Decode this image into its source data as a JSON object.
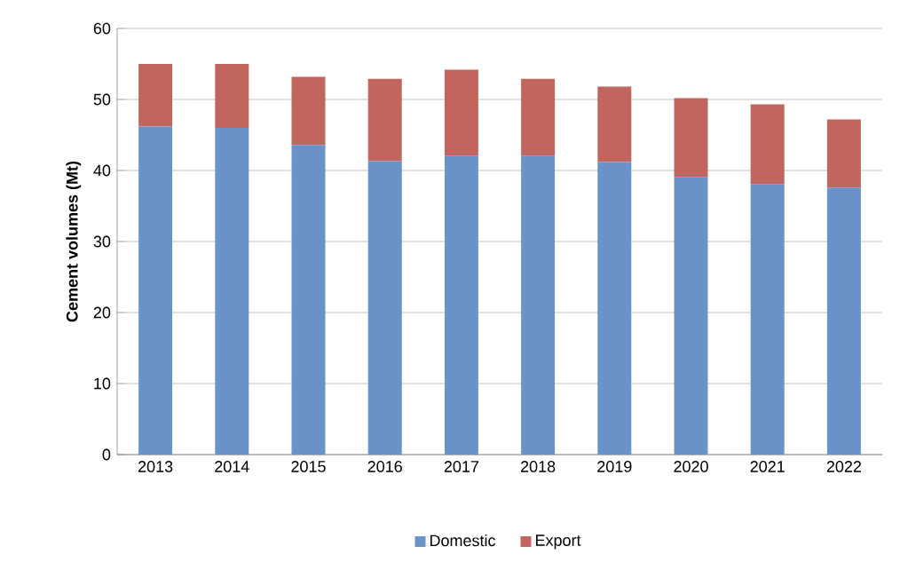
{
  "chart_data": {
    "type": "bar",
    "stacked": true,
    "ylabel": "Cement volumes (Mt)",
    "categories": [
      "2013",
      "2014",
      "2015",
      "2016",
      "2017",
      "2018",
      "2019",
      "2020",
      "2021",
      "2022"
    ],
    "series": [
      {
        "name": "Domestic",
        "color": "#6a94c8",
        "values": [
          46.2,
          46.0,
          43.6,
          41.3,
          42.1,
          42.1,
          41.2,
          39.1,
          38.1,
          37.6
        ]
      },
      {
        "name": "Export",
        "color": "#c0665f",
        "values": [
          8.8,
          9.0,
          9.6,
          11.6,
          12.1,
          10.8,
          10.6,
          11.1,
          11.2,
          9.6
        ]
      }
    ],
    "ylim": [
      0,
      60
    ],
    "yticks": [
      0,
      10,
      20,
      30,
      40,
      50,
      60
    ],
    "grid": "y",
    "legend": "bottom"
  }
}
